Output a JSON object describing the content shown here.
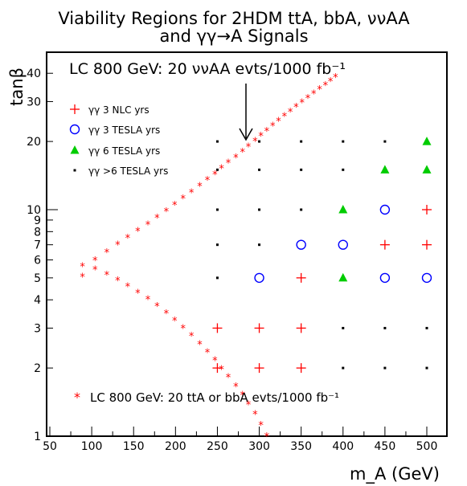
{
  "chart_data": {
    "type": "scatter",
    "title": [
      "Viability Regions for 2HDM ttA, bbA, ννAA",
      "and γγ→A Signals"
    ],
    "xlabel": "m_A (GeV)",
    "ylabel": "tanβ",
    "xlim": [
      50,
      510
    ],
    "ylim": [
      1,
      50
    ],
    "y_scale": "log",
    "grid": false,
    "x_ticks": [
      "50",
      "100",
      "150",
      "200",
      "250",
      "300",
      "350",
      "400",
      "450",
      "500"
    ],
    "x_tick_values": [
      50,
      100,
      150,
      200,
      250,
      300,
      350,
      400,
      450,
      500
    ],
    "y_ticks": [
      "1",
      "2",
      "3",
      "4",
      "5",
      "6",
      "7",
      "8",
      "9",
      "10",
      "20",
      "30",
      "40"
    ],
    "y_tick_values": [
      1,
      2,
      3,
      4,
      5,
      6,
      7,
      8,
      9,
      10,
      20,
      30,
      40
    ],
    "annotations": {
      "nu_nu_contour": "LC 800 GeV: 20 ννAA evts/1000 fb⁻¹",
      "tta_bba_contour": "LC 800 GeV: 20 ttA or bbA evts/1000 fb⁻¹"
    },
    "series": [
      {
        "name": "γγ 3 NLC yrs",
        "marker": "plus",
        "color": "#ff0000",
        "points": [
          [
            250,
            2
          ],
          [
            250,
            3
          ],
          [
            300,
            2
          ],
          [
            300,
            3
          ],
          [
            350,
            2
          ],
          [
            350,
            3
          ],
          [
            350,
            5
          ],
          [
            450,
            7
          ],
          [
            500,
            7
          ],
          [
            500,
            10
          ]
        ]
      },
      {
        "name": "γγ 3 TESLA yrs",
        "marker": "circle",
        "color": "#0000ff",
        "points": [
          [
            300,
            5
          ],
          [
            350,
            7
          ],
          [
            400,
            7
          ],
          [
            450,
            5
          ],
          [
            450,
            10
          ],
          [
            500,
            5
          ]
        ]
      },
      {
        "name": "γγ 6 TESLA yrs",
        "marker": "triangle",
        "color": "#00cc00",
        "points": [
          [
            400,
            5
          ],
          [
            400,
            10
          ],
          [
            450,
            15
          ],
          [
            500,
            15
          ],
          [
            500,
            20
          ]
        ]
      },
      {
        "name": "γγ >6 TESLA yrs",
        "marker": "square",
        "color": "#000000",
        "points": [
          [
            250,
            5
          ],
          [
            250,
            7
          ],
          [
            250,
            10
          ],
          [
            250,
            15
          ],
          [
            250,
            20
          ],
          [
            300,
            7
          ],
          [
            300,
            10
          ],
          [
            300,
            15
          ],
          [
            300,
            20
          ],
          [
            350,
            10
          ],
          [
            350,
            15
          ],
          [
            350,
            20
          ],
          [
            400,
            2
          ],
          [
            400,
            3
          ],
          [
            400,
            15
          ],
          [
            400,
            20
          ],
          [
            450,
            2
          ],
          [
            450,
            3
          ],
          [
            450,
            20
          ],
          [
            500,
            2
          ],
          [
            500,
            3
          ]
        ]
      }
    ],
    "boundary_curve": {
      "marker": "asterisk",
      "color": "#ff0000",
      "points": [
        [
          309,
          1
        ],
        [
          302,
          1.12
        ],
        [
          295,
          1.25
        ],
        [
          287,
          1.38
        ],
        [
          280,
          1.52
        ],
        [
          272,
          1.66
        ],
        [
          263,
          1.82
        ],
        [
          255,
          1.98
        ],
        [
          247,
          2.16
        ],
        [
          238,
          2.35
        ],
        [
          229,
          2.55
        ],
        [
          219,
          2.77
        ],
        [
          209,
          3.0
        ],
        [
          199,
          3.24
        ],
        [
          189,
          3.49
        ],
        [
          178,
          3.75
        ],
        [
          167,
          4.02
        ],
        [
          155,
          4.3
        ],
        [
          143,
          4.58
        ],
        [
          131,
          4.87
        ],
        [
          118,
          5.16
        ],
        [
          104,
          5.45
        ],
        [
          89,
          5.05
        ],
        [
          89,
          5.63
        ],
        [
          104,
          5.97
        ],
        [
          118,
          6.48
        ],
        [
          131,
          7.0
        ],
        [
          143,
          7.5
        ],
        [
          155,
          8.05
        ],
        [
          167,
          8.6
        ],
        [
          178,
          9.2
        ],
        [
          189,
          9.85
        ],
        [
          199,
          10.5
        ],
        [
          209,
          11.2
        ],
        [
          219,
          11.9
        ],
        [
          229,
          12.7
        ],
        [
          238,
          13.5
        ],
        [
          247,
          14.3
        ],
        [
          255,
          15.2
        ],
        [
          263,
          16.1
        ],
        [
          272,
          17.0
        ],
        [
          280,
          18.0
        ],
        [
          287,
          19.0
        ],
        [
          295,
          20.1
        ],
        [
          302,
          21.2
        ],
        [
          309,
          22.3
        ],
        [
          316,
          23.5
        ],
        [
          323,
          24.7
        ],
        [
          330,
          25.9
        ],
        [
          337,
          27.1
        ],
        [
          344,
          28.4
        ],
        [
          351,
          29.7
        ],
        [
          358,
          31.1
        ],
        [
          365,
          32.5
        ],
        [
          372,
          34.0
        ],
        [
          379,
          35.5
        ],
        [
          385,
          37.0
        ],
        [
          391,
          38.5
        ]
      ]
    }
  }
}
